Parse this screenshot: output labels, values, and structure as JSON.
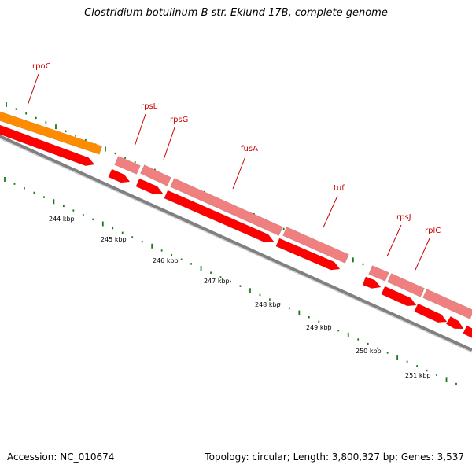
{
  "title": "Clostridium botulinum B str. Eklund 17B, complete genome",
  "footer": {
    "accession": "Accession: NC_010674",
    "topology": "Topology: circular; Length: 3,800,327 bp; Genes: 3,537"
  },
  "colors": {
    "backbone": "#808080",
    "backbone_light": "#c8c8c8",
    "cds_dark": "#ff0000",
    "cds_light": "#f08080",
    "operon_orange": "#ff8c00",
    "gene_label": "#cc0000",
    "tick": "#1a7a1a",
    "kbp_text": "#000000"
  },
  "genes": [
    {
      "name": "rpoC",
      "label": "rpoC"
    },
    {
      "name": "rpsL",
      "label": "rpsL"
    },
    {
      "name": "rpsG",
      "label": "rpsG"
    },
    {
      "name": "fusA",
      "label": "fusA"
    },
    {
      "name": "tuf",
      "label": "tuf"
    },
    {
      "name": "rpsJ",
      "label": "rpsJ"
    },
    {
      "name": "rplC",
      "label": "rplC"
    }
  ],
  "kbp_labels": [
    "244 kbp",
    "245 kbp",
    "246 kbp",
    "247 kbp",
    "248 kbp",
    "249 kbp",
    "250 kbp",
    "251 kbp"
  ]
}
